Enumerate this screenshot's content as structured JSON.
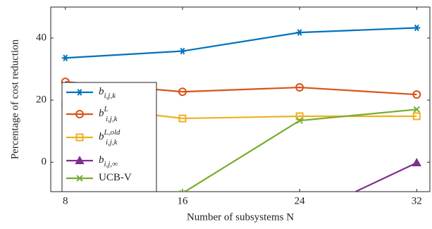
{
  "chart_data": {
    "type": "line",
    "x_label": "Number of subsystems N",
    "y_label": "Percentage of cost reduction",
    "x": [
      8,
      16,
      24,
      32
    ],
    "xlim": [
      7,
      32.9
    ],
    "xticks": [
      8,
      16,
      24,
      32
    ],
    "ylim": [
      -9.5,
      50
    ],
    "yticks": [
      0,
      20,
      40
    ],
    "series": [
      {
        "name": "b",
        "sub": "i,j,k",
        "color": "#0072bd",
        "marker": "asterisk",
        "values": [
          33.6,
          35.8,
          41.8,
          43.3
        ]
      },
      {
        "name": "b",
        "sup": "L",
        "sub": "i,j,k",
        "color": "#d95319",
        "marker": "circle",
        "values": [
          25.9,
          22.7,
          24.1,
          21.8
        ]
      },
      {
        "name": "b",
        "sup": "L,old",
        "sub": "i,j,k",
        "color": "#edb120",
        "marker": "square",
        "values": [
          18.6,
          14.1,
          14.8,
          14.8
        ]
      },
      {
        "name": "b",
        "sub": "i,j,∞",
        "color": "#7e2f8e",
        "marker": "triangle",
        "values": [
          null,
          null,
          -18,
          -0.2
        ]
      },
      {
        "name": "UCB-V",
        "color": "#77ac30",
        "marker": "x",
        "values": [
          null,
          -10,
          13.4,
          17.0
        ]
      }
    ]
  }
}
